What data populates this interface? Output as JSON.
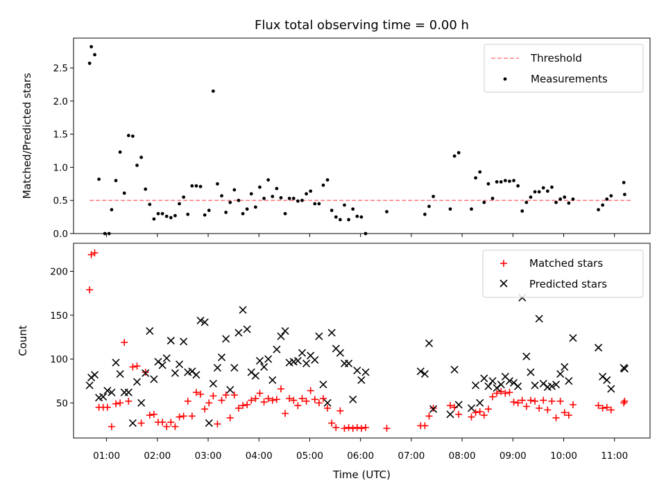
{
  "chart_data": [
    {
      "type": "scatter",
      "title": "Flux total observing time = 0.00 h",
      "xlabel": "",
      "ylabel": "Matched/Predicted stars",
      "xlim": [
        "00:21",
        "11:42"
      ],
      "ylim": [
        0,
        2.95
      ],
      "yticks": [
        "0.0",
        "0.5",
        "1.0",
        "1.5",
        "2.0",
        "2.5"
      ],
      "legend": "top-right",
      "threshold": {
        "name": "Threshold",
        "value": 0.5,
        "x": [
          "00:40",
          "11:20"
        ],
        "color": "#ff7f7f",
        "style": "dashed"
      },
      "series": [
        {
          "name": "Measurements",
          "color": "#000000",
          "marker": "dot",
          "x": [
            "00:40",
            "00:42",
            "00:46",
            "00:51",
            "00:58",
            "01:03",
            "01:06",
            "01:11",
            "01:16",
            "01:21",
            "01:26",
            "01:31",
            "01:36",
            "01:41",
            "01:46",
            "01:51",
            "01:56",
            "02:01",
            "02:06",
            "02:11",
            "02:16",
            "02:21",
            "02:26",
            "02:31",
            "02:36",
            "02:41",
            "02:46",
            "02:51",
            "02:56",
            "03:01",
            "03:06",
            "03:11",
            "03:16",
            "03:21",
            "03:26",
            "03:31",
            "03:36",
            "03:41",
            "03:46",
            "03:51",
            "03:56",
            "04:01",
            "04:06",
            "04:11",
            "04:16",
            "04:21",
            "04:26",
            "04:31",
            "04:36",
            "04:41",
            "04:46",
            "04:51",
            "04:56",
            "05:01",
            "05:06",
            "05:11",
            "05:16",
            "05:21",
            "05:26",
            "05:31",
            "05:36",
            "05:41",
            "05:46",
            "05:51",
            "05:56",
            "06:01",
            "06:06",
            "06:31",
            "07:16",
            "07:21",
            "07:26",
            "07:46",
            "07:51",
            "07:56",
            "08:11",
            "08:16",
            "08:21",
            "08:26",
            "08:31",
            "08:36",
            "08:41",
            "08:46",
            "08:51",
            "08:56",
            "09:01",
            "09:06",
            "09:11",
            "09:16",
            "09:21",
            "09:26",
            "09:31",
            "09:36",
            "09:41",
            "09:46",
            "09:51",
            "09:56",
            "10:01",
            "10:06",
            "10:11",
            "10:41",
            "10:46",
            "10:51",
            "10:56",
            "11:11",
            "11:12"
          ],
          "y": [
            2.57,
            2.82,
            2.7,
            0.82,
            0.0,
            0.0,
            0.36,
            0.8,
            1.23,
            0.61,
            1.48,
            1.47,
            1.03,
            1.15,
            0.67,
            0.44,
            0.22,
            0.3,
            0.3,
            0.26,
            0.24,
            0.27,
            0.45,
            0.55,
            0.29,
            0.72,
            0.72,
            0.71,
            0.28,
            0.35,
            2.15,
            0.75,
            0.57,
            0.32,
            0.47,
            0.66,
            0.5,
            0.3,
            0.37,
            0.6,
            0.4,
            0.7,
            0.53,
            0.81,
            0.56,
            0.68,
            0.54,
            0.3,
            0.53,
            0.53,
            0.49,
            0.5,
            0.6,
            0.64,
            0.45,
            0.45,
            0.73,
            0.81,
            0.35,
            0.25,
            0.21,
            0.43,
            0.21,
            0.37,
            0.26,
            0.25,
            0.0,
            0.33,
            0.29,
            0.41,
            0.56,
            0.37,
            1.17,
            1.22,
            0.37,
            0.84,
            0.93,
            0.47,
            0.75,
            0.53,
            0.78,
            0.78,
            0.8,
            0.79,
            0.8,
            0.72,
            0.34,
            0.47,
            0.55,
            0.63,
            0.63,
            0.69,
            0.64,
            0.7,
            0.47,
            0.52,
            0.55,
            0.46,
            0.52,
            0.36,
            0.43,
            0.52,
            0.57,
            0.77,
            0.59
          ]
        }
      ]
    },
    {
      "type": "scatter",
      "title": "",
      "xlabel": "Time (UTC)",
      "ylabel": "Count",
      "xlim": [
        "00:21",
        "11:42"
      ],
      "ylim": [
        10,
        232
      ],
      "xticks": [
        "01:00",
        "02:00",
        "03:00",
        "04:00",
        "05:00",
        "06:00",
        "07:00",
        "08:00",
        "09:00",
        "10:00",
        "11:00"
      ],
      "yticks": [
        "50",
        "100",
        "150",
        "200"
      ],
      "legend": "top-right",
      "series": [
        {
          "name": "Matched stars",
          "color": "#ff0000",
          "marker": "plus",
          "x": [
            "00:40",
            "00:42",
            "00:46",
            "00:51",
            "00:56",
            "01:01",
            "01:06",
            "01:11",
            "01:16",
            "01:21",
            "01:26",
            "01:31",
            "01:36",
            "01:41",
            "01:46",
            "01:51",
            "01:56",
            "02:01",
            "02:06",
            "02:11",
            "02:16",
            "02:21",
            "02:26",
            "02:31",
            "02:36",
            "02:41",
            "02:46",
            "02:51",
            "02:56",
            "03:01",
            "03:06",
            "03:11",
            "03:16",
            "03:21",
            "03:26",
            "03:31",
            "03:36",
            "03:41",
            "03:46",
            "03:51",
            "03:56",
            "04:01",
            "04:06",
            "04:11",
            "04:16",
            "04:21",
            "04:26",
            "04:31",
            "04:36",
            "04:41",
            "04:46",
            "04:51",
            "04:56",
            "05:01",
            "05:06",
            "05:11",
            "05:16",
            "05:21",
            "05:26",
            "05:31",
            "05:36",
            "05:41",
            "05:46",
            "05:51",
            "05:56",
            "06:01",
            "06:06",
            "06:31",
            "07:11",
            "07:16",
            "07:21",
            "07:26",
            "07:46",
            "07:51",
            "07:56",
            "08:11",
            "08:16",
            "08:21",
            "08:26",
            "08:31",
            "08:36",
            "08:41",
            "08:46",
            "08:51",
            "08:56",
            "09:01",
            "09:06",
            "09:11",
            "09:16",
            "09:21",
            "09:26",
            "09:31",
            "09:36",
            "09:41",
            "09:46",
            "09:51",
            "09:56",
            "10:01",
            "10:06",
            "10:11",
            "10:41",
            "10:46",
            "10:51",
            "10:56",
            "11:11",
            "11:12"
          ],
          "y": [
            179,
            219,
            221,
            45,
            45,
            45,
            23,
            49,
            50,
            119,
            52,
            91,
            92,
            27,
            85,
            36,
            37,
            28,
            28,
            23,
            28,
            23,
            34,
            35,
            52,
            35,
            62,
            60,
            43,
            50,
            58,
            26,
            53,
            59,
            33,
            59,
            44,
            47,
            48,
            53,
            55,
            61,
            51,
            55,
            53,
            54,
            66,
            38,
            55,
            53,
            47,
            55,
            52,
            64,
            54,
            50,
            55,
            44,
            27,
            22,
            41,
            21,
            22,
            21,
            22,
            21,
            22,
            21,
            24,
            24,
            35,
            44,
            47,
            45,
            37,
            34,
            39,
            40,
            36,
            43,
            57,
            61,
            63,
            61,
            62,
            51,
            50,
            53,
            46,
            53,
            52,
            44,
            53,
            42,
            52,
            33,
            52,
            39,
            36,
            48,
            47,
            44,
            45,
            42,
            50,
            52
          ]
        },
        {
          "name": "Predicted stars",
          "color": "#000000",
          "marker": "x",
          "x": [
            "00:40",
            "00:42",
            "00:46",
            "00:51",
            "00:56",
            "01:01",
            "01:06",
            "01:11",
            "01:16",
            "01:21",
            "01:26",
            "01:31",
            "01:36",
            "01:41",
            "01:46",
            "01:51",
            "01:56",
            "02:01",
            "02:06",
            "02:11",
            "02:16",
            "02:21",
            "02:26",
            "02:31",
            "02:36",
            "02:41",
            "02:46",
            "02:51",
            "02:56",
            "03:01",
            "03:06",
            "03:11",
            "03:16",
            "03:21",
            "03:26",
            "03:31",
            "03:36",
            "03:41",
            "03:46",
            "03:51",
            "03:56",
            "04:01",
            "04:06",
            "04:11",
            "04:16",
            "04:21",
            "04:26",
            "04:31",
            "04:36",
            "04:41",
            "04:46",
            "04:51",
            "04:56",
            "05:01",
            "05:06",
            "05:11",
            "05:16",
            "05:21",
            "05:26",
            "05:31",
            "05:36",
            "05:41",
            "05:46",
            "05:51",
            "05:56",
            "06:01",
            "06:06",
            "07:11",
            "07:16",
            "07:21",
            "07:26",
            "07:46",
            "07:51",
            "07:56",
            "08:11",
            "08:16",
            "08:21",
            "08:26",
            "08:31",
            "08:36",
            "08:41",
            "08:46",
            "08:51",
            "08:56",
            "09:01",
            "09:06",
            "09:11",
            "09:16",
            "09:21",
            "09:26",
            "09:31",
            "09:36",
            "09:41",
            "09:46",
            "09:51",
            "09:56",
            "10:01",
            "10:06",
            "10:11",
            "10:41",
            "10:46",
            "10:51",
            "10:56",
            "11:11",
            "11:12"
          ],
          "y": [
            70,
            79,
            82,
            56,
            57,
            64,
            62,
            96,
            83,
            62,
            62,
            27,
            74,
            50,
            84,
            132,
            77,
            97,
            93,
            101,
            121,
            84,
            94,
            120,
            85,
            86,
            82,
            144,
            142,
            27,
            72,
            90,
            102,
            123,
            65,
            90,
            130,
            156,
            134,
            85,
            81,
            98,
            91,
            100,
            76,
            111,
            126,
            132,
            96,
            97,
            98,
            107,
            95,
            104,
            99,
            126,
            71,
            50,
            130,
            112,
            107,
            95,
            95,
            54,
            87,
            76,
            85,
            86,
            83,
            118,
            43,
            37,
            88,
            48,
            44,
            70,
            50,
            78,
            69,
            75,
            67,
            71,
            80,
            75,
            73,
            69,
            170,
            103,
            85,
            70,
            146,
            72,
            68,
            69,
            71,
            83,
            91,
            75,
            124,
            113,
            80,
            76,
            66,
            90,
            89
          ]
        }
      ]
    }
  ]
}
